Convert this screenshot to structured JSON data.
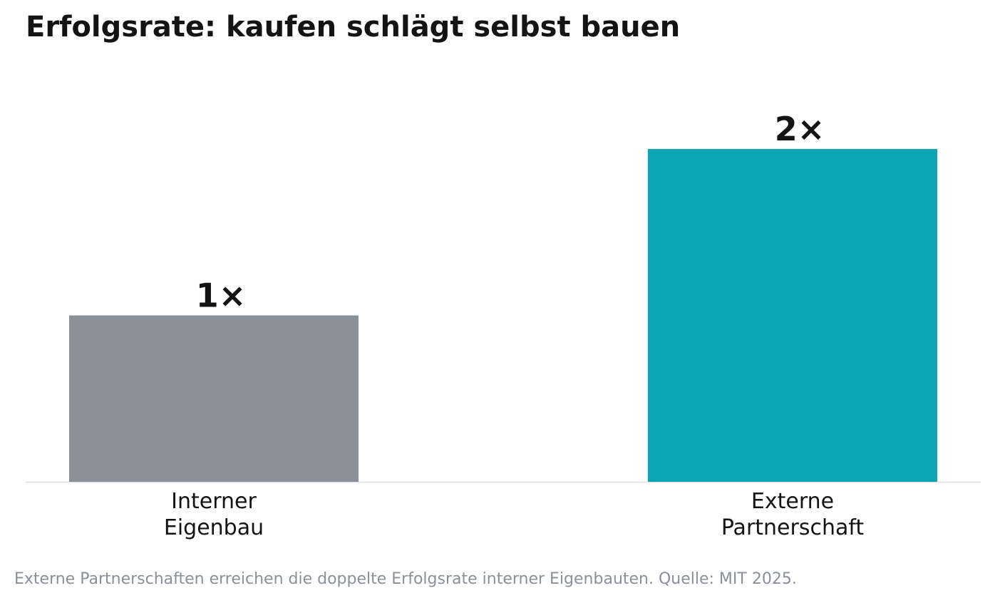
{
  "chart_data": {
    "type": "bar",
    "title": "Erfolgsrate: kaufen schlägt selbst bauen",
    "categories": [
      "Interner\nEigenbau",
      "Externe\nPartnerschaft"
    ],
    "values": [
      1,
      2
    ],
    "data_labels": [
      "1×",
      "2×"
    ],
    "colors": [
      "#8a9098",
      "#0ba5b6"
    ],
    "xlabel": "",
    "ylabel": "",
    "ylim": [
      0,
      2.24
    ],
    "grid": false,
    "legend": "none"
  },
  "footnote": "Externe Partnerschaften erreichen die doppelte Erfolgsrate interner Eigenbauten. Quelle: MIT 2025.",
  "colors": {
    "text": "#141414",
    "muted": "#8a9098",
    "baseline": "#e3e4e6"
  }
}
